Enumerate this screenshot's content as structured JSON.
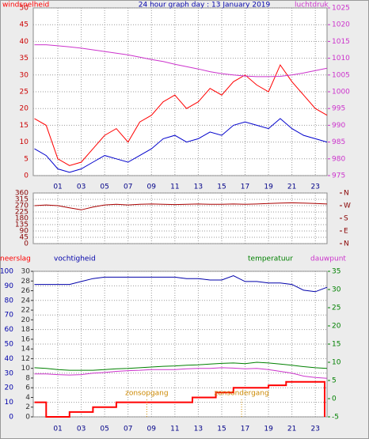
{
  "chart_data": [
    {
      "type": "line",
      "title": "24 hour graph day : 13 January 2019",
      "x": [
        -1,
        0,
        1,
        2,
        3,
        4,
        5,
        6,
        7,
        8,
        9,
        10,
        11,
        12,
        13,
        14,
        15,
        16,
        17,
        18,
        19,
        20,
        21,
        22,
        23,
        24
      ],
      "xlim": [
        -1.1,
        24
      ],
      "xticks": [
        {
          "value": 1,
          "label": "01"
        },
        {
          "value": 3,
          "label": "03"
        },
        {
          "value": 5,
          "label": "05"
        },
        {
          "value": 7,
          "label": "07"
        },
        {
          "value": 9,
          "label": "09"
        },
        {
          "value": 11,
          "label": "11"
        },
        {
          "value": 13,
          "label": "13"
        },
        {
          "value": 15,
          "label": "15"
        },
        {
          "value": 17,
          "label": "17"
        },
        {
          "value": 19,
          "label": "19"
        },
        {
          "value": 21,
          "label": "21"
        },
        {
          "value": 23,
          "label": "23"
        }
      ],
      "ylim": [
        0,
        50
      ],
      "yticks": [
        0,
        5,
        10,
        15,
        20,
        25,
        30,
        35,
        40,
        45,
        50
      ],
      "y2lim": [
        975,
        1025
      ],
      "y2ticks": [
        975,
        980,
        985,
        990,
        995,
        1000,
        1005,
        1010,
        1015,
        1020,
        1025
      ],
      "grid": true,
      "series": [
        {
          "name": "windsnelheid",
          "color": "#ff0000",
          "values": [
            17,
            15,
            5,
            3,
            4,
            8,
            12,
            14,
            10,
            16,
            18,
            22,
            24,
            20,
            22,
            26,
            24,
            28,
            30,
            27,
            25,
            33,
            28,
            24,
            20,
            18
          ]
        },
        {
          "color": "#0000cc",
          "values": [
            8,
            6,
            2,
            1,
            2,
            4,
            6,
            5,
            4,
            6,
            8,
            11,
            12,
            10,
            11,
            13,
            12,
            15,
            16,
            15,
            14,
            17,
            14,
            12,
            11,
            10
          ]
        },
        {
          "name": "luchtdruk",
          "color": "#cc33cc",
          "axis": "y2",
          "values": [
            1014,
            1014,
            1013.7,
            1013.4,
            1013,
            1012.5,
            1012,
            1011.5,
            1011,
            1010.3,
            1009.6,
            1009,
            1008.2,
            1007.5,
            1006.8,
            1006,
            1005.4,
            1005,
            1004.7,
            1004.5,
            1004.5,
            1004.6,
            1005,
            1005.6,
            1006.3,
            1007
          ]
        }
      ]
    },
    {
      "type": "line",
      "x": [
        -1,
        0,
        1,
        2,
        3,
        4,
        5,
        6,
        7,
        8,
        9,
        10,
        11,
        12,
        13,
        14,
        15,
        16,
        17,
        18,
        19,
        20,
        21,
        22,
        23,
        24
      ],
      "xlim": [
        -1.1,
        24
      ],
      "xticks": [
        1,
        3,
        5,
        7,
        9,
        11,
        13,
        15,
        17,
        19,
        21,
        23
      ],
      "ylim": [
        0,
        360
      ],
      "yticks": [
        0,
        45,
        90,
        135,
        180,
        225,
        270,
        315,
        360
      ],
      "y2lim": [
        0,
        360
      ],
      "y2ticks": [
        {
          "value": 0,
          "label": "N"
        },
        {
          "value": 90,
          "label": "E"
        },
        {
          "value": 180,
          "label": "S"
        },
        {
          "value": 270,
          "label": "W"
        },
        {
          "value": 360,
          "label": "N"
        }
      ],
      "grid": true,
      "series": [
        {
          "color": "#aa0000",
          "values": [
            270,
            275,
            270,
            255,
            240,
            260,
            275,
            280,
            275,
            280,
            282,
            280,
            278,
            280,
            282,
            280,
            280,
            282,
            280,
            282,
            285,
            288,
            290,
            288,
            285,
            282
          ]
        }
      ]
    },
    {
      "type": "line",
      "x": [
        -1,
        0,
        1,
        2,
        3,
        4,
        5,
        6,
        7,
        8,
        9,
        10,
        11,
        12,
        13,
        14,
        15,
        16,
        17,
        18,
        19,
        20,
        21,
        22,
        23,
        24
      ],
      "xlim": [
        -1.1,
        24
      ],
      "xticks": [
        {
          "value": 1,
          "label": "01"
        },
        {
          "value": 3,
          "label": "03"
        },
        {
          "value": 5,
          "label": "05"
        },
        {
          "value": 7,
          "label": "07"
        },
        {
          "value": 9,
          "label": "09"
        },
        {
          "value": 11,
          "label": "11"
        },
        {
          "value": 13,
          "label": "13"
        },
        {
          "value": 15,
          "label": "15"
        },
        {
          "value": 17,
          "label": "17"
        },
        {
          "value": 19,
          "label": "19"
        },
        {
          "value": 21,
          "label": "21"
        },
        {
          "value": 23,
          "label": "23"
        }
      ],
      "ylim": [
        0,
        100
      ],
      "yticks": [
        0,
        10,
        20,
        30,
        40,
        50,
        60,
        70,
        80,
        90,
        100
      ],
      "y2lim": [
        0,
        30
      ],
      "y2ticks": [
        0,
        2,
        4,
        6,
        8,
        10,
        12,
        14,
        16,
        18,
        20,
        22,
        24,
        26,
        28,
        30
      ],
      "y3lim": [
        -5,
        35
      ],
      "y3ticks": [
        -5,
        0,
        5,
        10,
        15,
        20,
        25,
        30,
        35
      ],
      "grid": true,
      "series": [
        {
          "name": "neerslag",
          "color": "#ff0000",
          "axis": "y2",
          "x": [
            -1,
            0,
            0,
            2,
            2,
            4,
            4,
            6,
            6,
            12.5,
            12.5,
            14.5,
            14.5,
            16,
            16,
            19,
            19,
            20.5,
            20.5,
            23.8,
            23.8
          ],
          "values": [
            3,
            3,
            0,
            0,
            1,
            1,
            2,
            2,
            3,
            3,
            4,
            4,
            5,
            5,
            6,
            6,
            6.5,
            6.5,
            7.2,
            7.2,
            0
          ]
        },
        {
          "name": "vochtigheid",
          "color": "#0000aa",
          "values": [
            91,
            91,
            91,
            91,
            93,
            95,
            96,
            96,
            96,
            96,
            96,
            96,
            96,
            95,
            95,
            94,
            94,
            97,
            93,
            93,
            92,
            92,
            91,
            87,
            86,
            89
          ]
        },
        {
          "name": "temperatuur",
          "color": "#008000",
          "axis": "y3",
          "values": [
            8.5,
            8.3,
            8,
            7.8,
            7.8,
            7.8,
            8,
            8.2,
            8.3,
            8.5,
            8.7,
            8.9,
            9,
            9.2,
            9.3,
            9.5,
            9.7,
            9.8,
            9.6,
            10,
            9.8,
            9.5,
            9.2,
            8.8,
            8.5,
            8.3
          ]
        },
        {
          "name": "dauwpunt",
          "color": "#cc33cc",
          "axis": "y3",
          "values": [
            6.8,
            6.8,
            6.6,
            6.5,
            6.6,
            7,
            7.2,
            7.5,
            7.7,
            7.8,
            8,
            8,
            8,
            8.2,
            8.3,
            8.3,
            8.5,
            8.4,
            8.2,
            8.3,
            8,
            7.5,
            7,
            6.2,
            5.8,
            5.6
          ]
        }
      ],
      "annotations": [
        {
          "text": "zonsopgang",
          "x": 8.6
        },
        {
          "text": "zonsondergang",
          "x": 16.7
        }
      ]
    }
  ]
}
